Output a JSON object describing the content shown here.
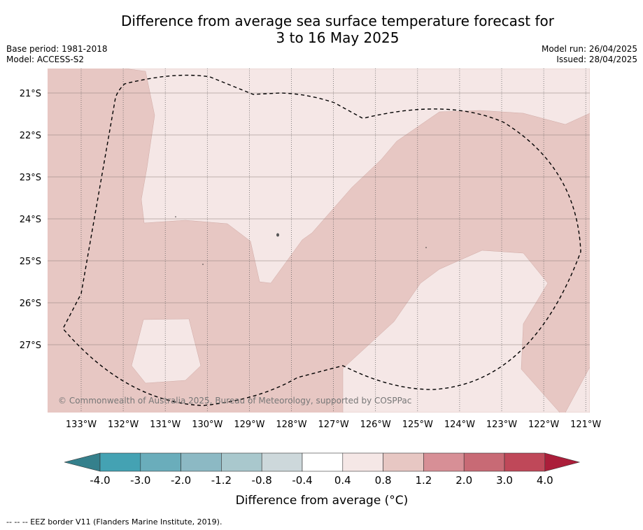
{
  "title_line1": "Difference from average sea surface temperature forecast for",
  "title_line2": "3 to 16 May 2025",
  "base_period": "Base period: 1981-2018",
  "model": "Model: ACCESS-S2",
  "model_run": "Model run: 26/04/2025",
  "issued": "Issued: 28/04/2025",
  "copyright": "© Commonwealth of Australia 2025, Bureau of Meteorology, supported by COSPPac",
  "footnote": "--  --  -- EEZ border V11 (Flanders Marine Institute, 2019).",
  "colorbar": {
    "title": "Difference from average (°C)",
    "tick_labels": [
      "-4.0",
      "-3.0",
      "-2.0",
      "-1.2",
      "-0.8",
      "-0.4",
      "0.4",
      "0.8",
      "1.2",
      "2.0",
      "3.0",
      "4.0"
    ],
    "colors": [
      "#44a2b3",
      "#6aadbb",
      "#8cb9c4",
      "#a9c8cd",
      "#cdd8db",
      "#ffffff",
      "#f5e7e6",
      "#e7c7c3",
      "#d78f96",
      "#c86a75",
      "#bf4859"
    ],
    "low_extend_color": "#35808c",
    "high_extend_color": "#ab1e3a"
  },
  "map": {
    "lat_labels": [
      "21°S",
      "22°S",
      "23°S",
      "24°S",
      "25°S",
      "26°S",
      "27°S"
    ],
    "lon_labels": [
      "133°W",
      "132°W",
      "131°W",
      "130°W",
      "129°W",
      "128°W",
      "127°W",
      "126°W",
      "125°W",
      "124°W",
      "123°W",
      "122°W",
      "121°W"
    ],
    "colors": {
      "anomaly_0_4_to_0_8": "#f5e7e6",
      "anomaly_0_8_to_1_2": "#e7c7c3"
    }
  }
}
